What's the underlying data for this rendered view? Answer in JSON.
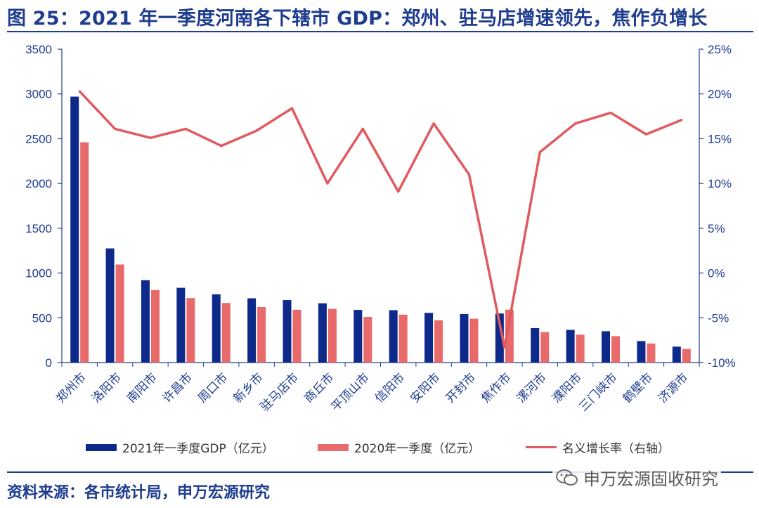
{
  "title": "图 25：2021 年一季度河南各下辖市 GDP：郑州、驻马店增速领先，焦作负增长",
  "source": "资料来源：各市统计局，申万宏源研究",
  "watermark": "申万宏源固收研究",
  "colors": {
    "gdp2021": "#0d2a8a",
    "gdp2020": "#e86a6a",
    "growth": "#e05a5f",
    "axis": "#1e3d8f"
  },
  "chart_data": {
    "type": "bar",
    "categories": [
      "郑州市",
      "洛阳市",
      "南阳市",
      "许昌市",
      "周口市",
      "新乡市",
      "驻马店市",
      "商丘市",
      "平顶山市",
      "信阳市",
      "安阳市",
      "开封市",
      "焦作市",
      "漯河市",
      "濮阳市",
      "三门峡市",
      "鹤壁市",
      "济源市"
    ],
    "series": [
      {
        "name": "2021年一季度GDP（亿元）",
        "type": "bar",
        "axis": "left",
        "values": [
          2970,
          1275,
          920,
          835,
          762,
          718,
          698,
          662,
          588,
          585,
          555,
          542,
          548,
          385,
          365,
          350,
          240,
          178
        ]
      },
      {
        "name": "2020年一季度（亿元）",
        "type": "bar",
        "axis": "left",
        "values": [
          2460,
          1095,
          810,
          720,
          665,
          620,
          590,
          600,
          510,
          535,
          472,
          490,
          590,
          340,
          312,
          295,
          213,
          152
        ]
      },
      {
        "name": "名义增长率（右轴）",
        "type": "line",
        "axis": "right",
        "values": [
          20.3,
          16.1,
          15.1,
          16.1,
          14.2,
          15.9,
          18.4,
          10.0,
          16.1,
          9.1,
          16.7,
          11.0,
          -8.3,
          13.5,
          16.7,
          17.9,
          15.5,
          17.1
        ]
      }
    ],
    "y_left": {
      "min": 0,
      "max": 3500,
      "ticks": [
        0,
        500,
        1000,
        1500,
        2000,
        2500,
        3000,
        3500
      ]
    },
    "y_right": {
      "min": -10,
      "max": 25,
      "ticks": [
        "-10%",
        "-5%",
        "0%",
        "5%",
        "10%",
        "15%",
        "20%",
        "25%"
      ]
    },
    "legend_position": "bottom"
  }
}
